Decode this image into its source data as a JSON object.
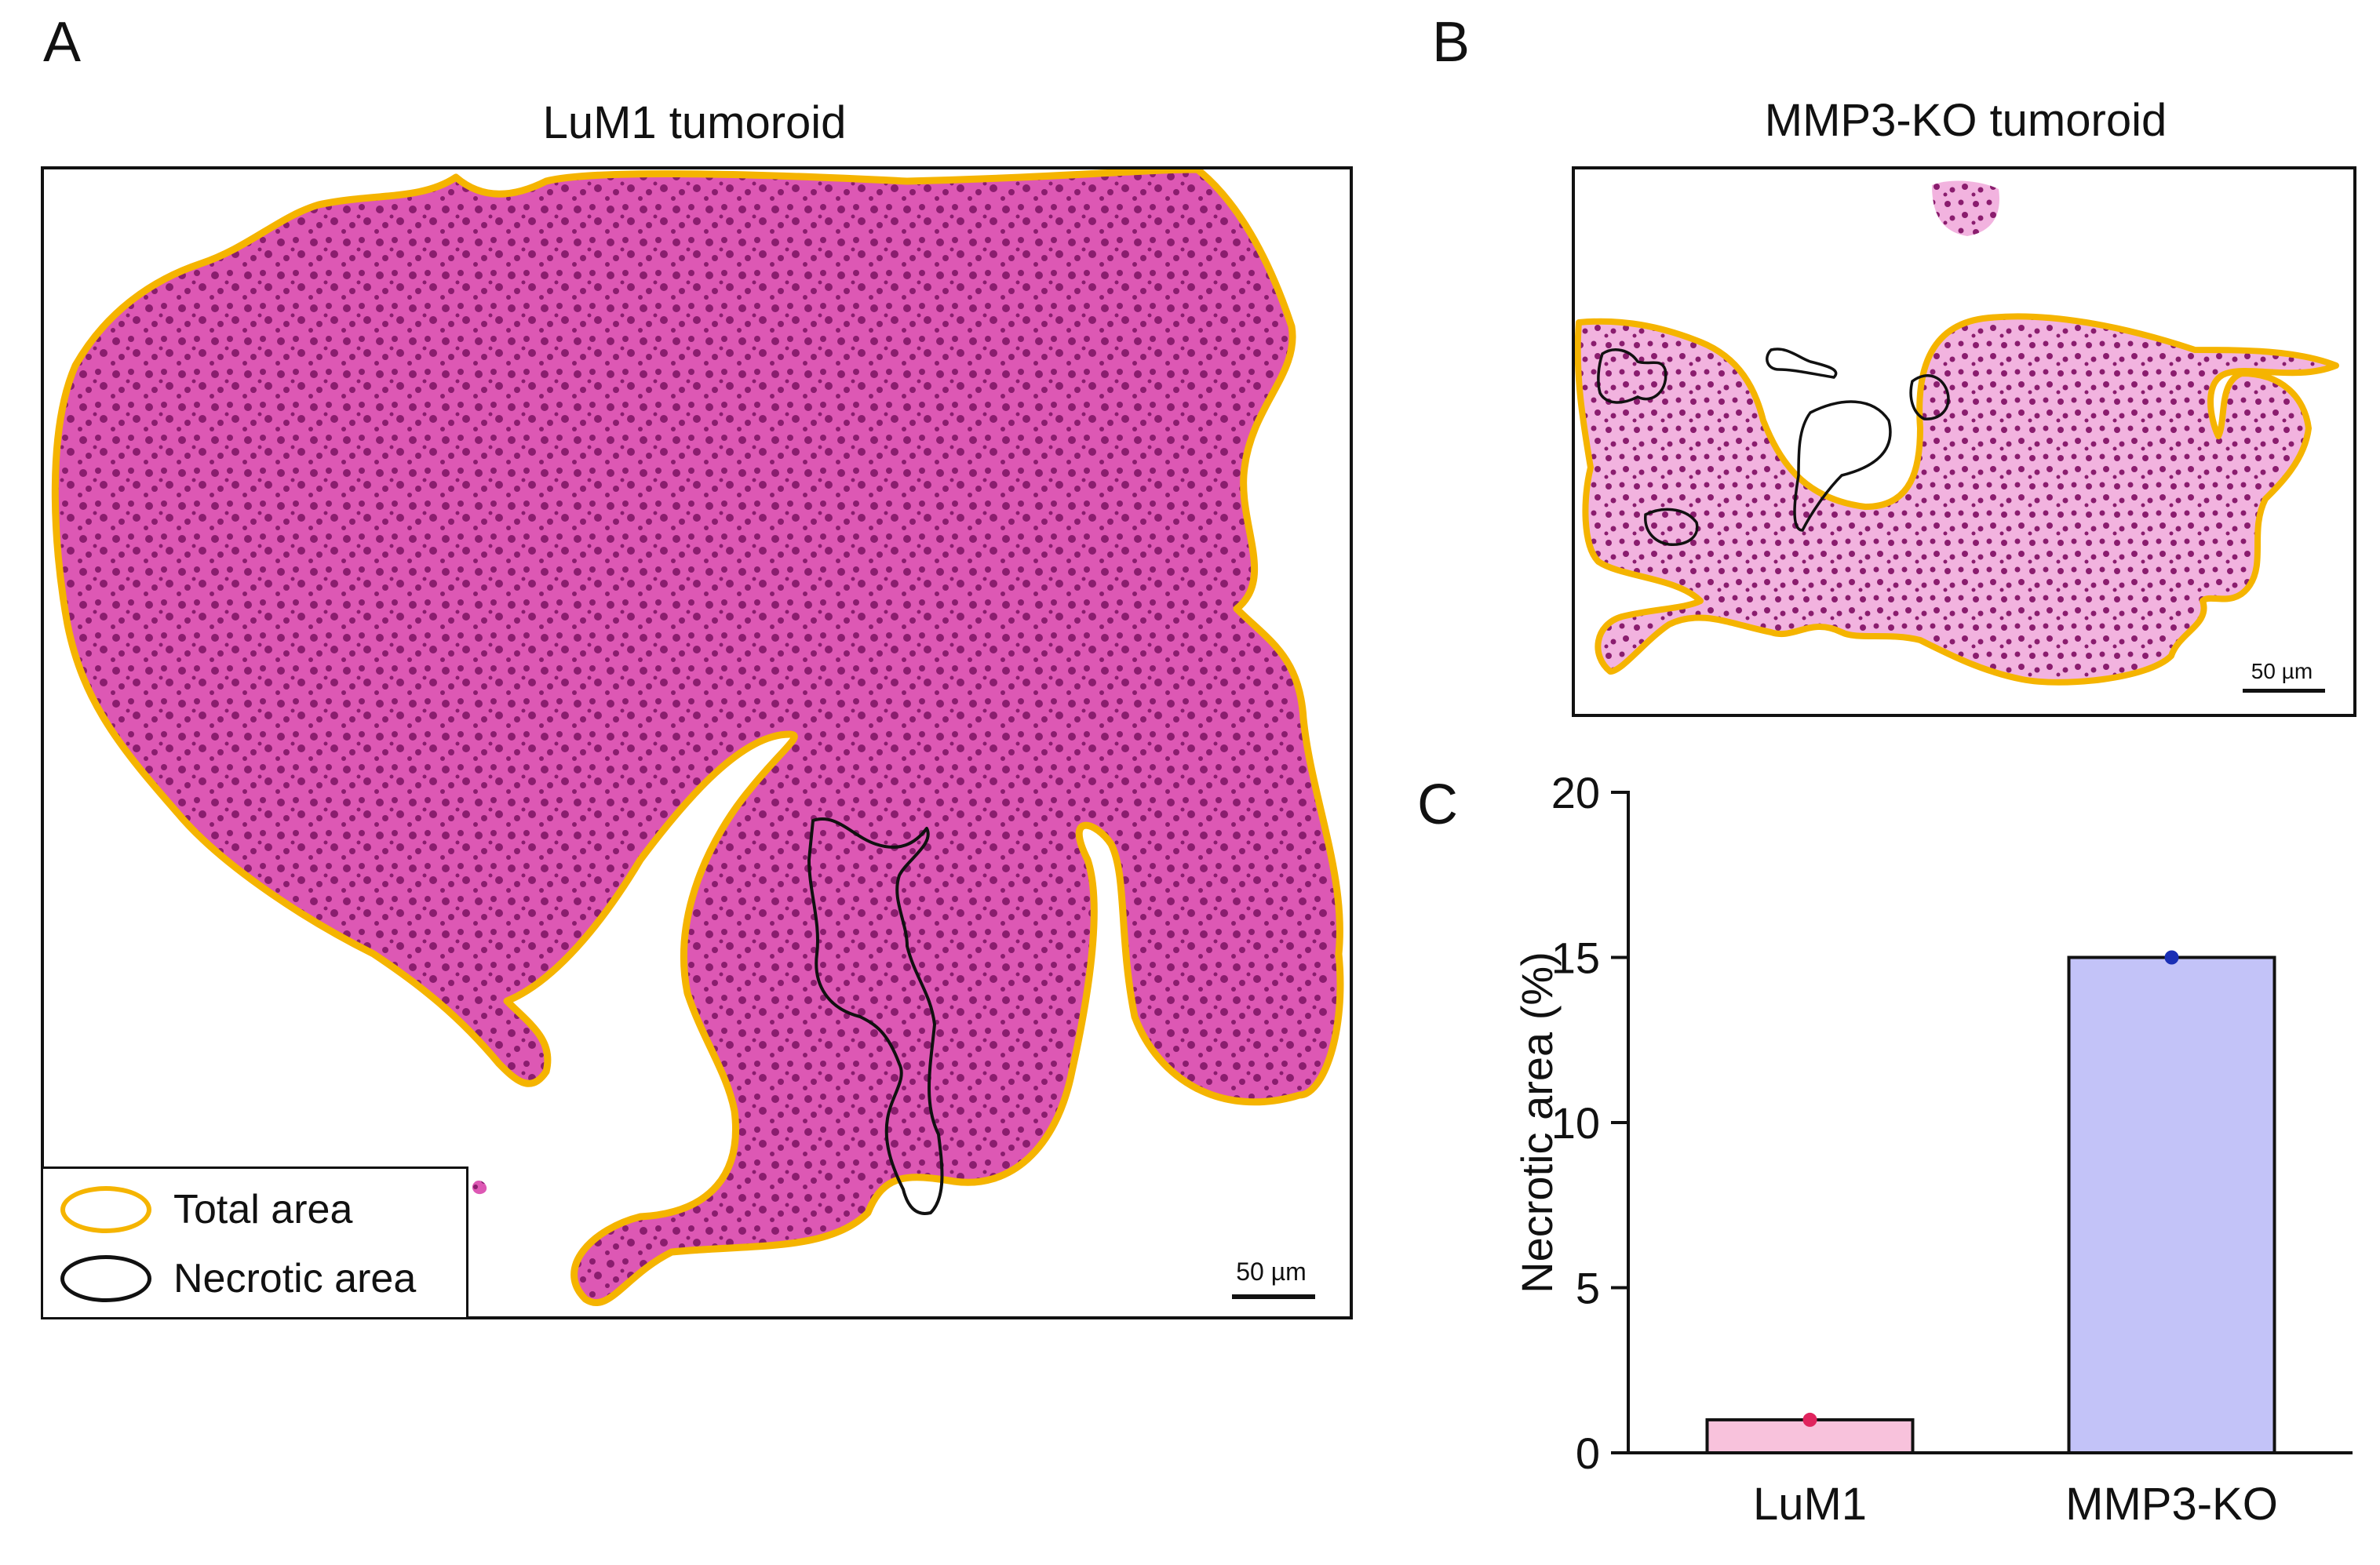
{
  "panels": {
    "a": {
      "letter": "A",
      "title": "LuM1 tumoroid",
      "scale_label": "50 µm"
    },
    "b": {
      "letter": "B",
      "title": "MMP3-KO  tumoroid",
      "scale_label": "50 µm"
    },
    "c": {
      "letter": "C"
    }
  },
  "legend": {
    "total": {
      "label": "Total area",
      "color": "#f5b400"
    },
    "necrotic": {
      "label": "Necrotic area",
      "color": "#111111"
    }
  },
  "micrograph": {
    "tissue_color": "#dd58b4",
    "tissue_light": "#f2b3df",
    "nuclei_color": "#8a1d6e"
  },
  "chart_data": {
    "type": "bar",
    "title": "",
    "xlabel": "",
    "ylabel": "Necrotic area (%)",
    "categories": [
      "LuM1",
      "MMP3-KO"
    ],
    "values": [
      1.0,
      15.0
    ],
    "bar_colors": [
      "#f8c2dc",
      "#c3c3f8"
    ],
    "point_colors": [
      "#e0245e",
      "#1a2fb5"
    ],
    "ylim": [
      0,
      20
    ],
    "yticks": [
      0,
      5,
      10,
      15,
      20
    ],
    "ytick_labels": [
      "0",
      "5",
      "10",
      "15",
      "20"
    ],
    "grid": false,
    "legend": "none"
  }
}
